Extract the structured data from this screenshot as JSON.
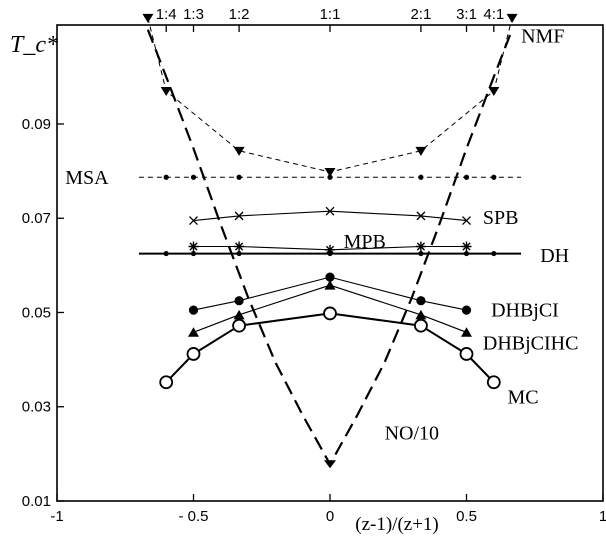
{
  "chart_data": {
    "type": "line",
    "xlabel": "(z-1)/(z+1)",
    "ylabel": "T_c*",
    "xlim": [
      -1,
      1
    ],
    "ylim": [
      0.01,
      0.111
    ],
    "x_ticks": [
      {
        "v": -1,
        "label": "-1"
      },
      {
        "v": -0.5,
        "label": "- 0.5"
      },
      {
        "v": 0,
        "label": "0"
      },
      {
        "v": 0.5,
        "label": "0.5"
      },
      {
        "v": 1,
        "label": "1"
      }
    ],
    "y_ticks": [
      {
        "v": 0.01,
        "label": "0.01"
      },
      {
        "v": 0.03,
        "label": "0.03"
      },
      {
        "v": 0.05,
        "label": "0.05"
      },
      {
        "v": 0.07,
        "label": "0.07"
      },
      {
        "v": 0.09,
        "label": "0.09"
      }
    ],
    "top_ticks": [
      {
        "v": -0.6,
        "label": "1:4"
      },
      {
        "v": -0.5,
        "label": "1:3"
      },
      {
        "v": -0.333,
        "label": "1:2"
      },
      {
        "v": 0,
        "label": "1:1"
      },
      {
        "v": 0.333,
        "label": "2:1"
      },
      {
        "v": 0.5,
        "label": "3:1"
      },
      {
        "v": 0.6,
        "label": "4:1"
      }
    ],
    "series": [
      {
        "name": "NMF",
        "style": "dashed-thin",
        "marker": "triangle-down",
        "x": [
          -0.667,
          -0.6,
          -0.333,
          0,
          0.333,
          0.6,
          0.667
        ],
        "y": [
          0.1125,
          0.097,
          0.0843,
          0.0798,
          0.0843,
          0.097,
          0.1125
        ]
      },
      {
        "name": "MSA",
        "style": "dashed-thin",
        "marker": "dot",
        "x": [
          -0.6,
          -0.5,
          -0.333,
          0,
          0.333,
          0.5,
          0.6
        ],
        "y": [
          0.0787,
          0.0787,
          0.0787,
          0.0787,
          0.0787,
          0.0787,
          0.0787
        ],
        "line_x": [
          -0.7,
          0.7
        ]
      },
      {
        "name": "SPB",
        "style": "solid-thin",
        "marker": "x",
        "x": [
          -0.5,
          -0.333,
          0,
          0.333,
          0.5
        ],
        "y": [
          0.0695,
          0.0705,
          0.0715,
          0.0705,
          0.0695
        ]
      },
      {
        "name": "MPB",
        "style": "solid-thin",
        "marker": "asterisk",
        "x": [
          -0.5,
          -0.333,
          0,
          0.333,
          0.5
        ],
        "y": [
          0.064,
          0.064,
          0.0633,
          0.064,
          0.064
        ]
      },
      {
        "name": "DH",
        "style": "solid-thick",
        "marker": "dot",
        "x": [
          -0.6,
          -0.5,
          -0.333,
          0,
          0.333,
          0.5,
          0.6
        ],
        "y": [
          0.0625,
          0.0625,
          0.0625,
          0.0625,
          0.0625,
          0.0625,
          0.0625
        ],
        "line_x": [
          -0.7,
          0.7
        ]
      },
      {
        "name": "DHBjCI",
        "style": "solid-thin",
        "marker": "filled-circle",
        "x": [
          -0.5,
          -0.333,
          0,
          0.333,
          0.5
        ],
        "y": [
          0.0505,
          0.0525,
          0.0575,
          0.0525,
          0.0505
        ]
      },
      {
        "name": "DHBjCIHC",
        "style": "solid-thin",
        "marker": "filled-triangle-up",
        "x": [
          -0.5,
          -0.333,
          0,
          0.333,
          0.5
        ],
        "y": [
          0.0458,
          0.0495,
          0.0558,
          0.0495,
          0.0458
        ]
      },
      {
        "name": "MC",
        "style": "solid-thick",
        "marker": "open-circle",
        "x": [
          -0.6,
          -0.5,
          -0.333,
          0,
          0.333,
          0.5,
          0.6
        ],
        "y": [
          0.0352,
          0.0412,
          0.0472,
          0.0498,
          0.0472,
          0.0412,
          0.0352
        ]
      },
      {
        "name": "NO/10",
        "style": "dashed-thick",
        "marker": "filled-triangle-down-bottom",
        "x": [
          -0.667,
          -0.6,
          -0.5,
          -0.4,
          -0.3,
          -0.2,
          -0.1,
          0,
          0.1,
          0.2,
          0.3,
          0.4,
          0.5,
          0.6,
          0.667
        ],
        "y": [
          0.11,
          0.1,
          0.0848,
          0.0686,
          0.0532,
          0.0394,
          0.0282,
          0.0178,
          0.0282,
          0.0394,
          0.0532,
          0.0686,
          0.0848,
          0.1,
          0.11
        ]
      }
    ],
    "annotations": [
      {
        "text": "NMF",
        "x": 0.7,
        "y": 0.1088
      },
      {
        "text": "MSA",
        "x": -0.97,
        "y": 0.0787
      },
      {
        "text": "SPB",
        "x": 0.56,
        "y": 0.0703
      },
      {
        "text": "MPB",
        "x": 0.05,
        "y": 0.0652
      },
      {
        "text": "DH",
        "x": 0.77,
        "y": 0.0622
      },
      {
        "text": "DHBjCI",
        "x": 0.59,
        "y": 0.0506
      },
      {
        "text": "DHBjCIHC",
        "x": 0.56,
        "y": 0.0436
      },
      {
        "text": "MC",
        "x": 0.65,
        "y": 0.0322
      },
      {
        "text": "NO/10",
        "x": 0.2,
        "y": 0.0245
      }
    ]
  }
}
